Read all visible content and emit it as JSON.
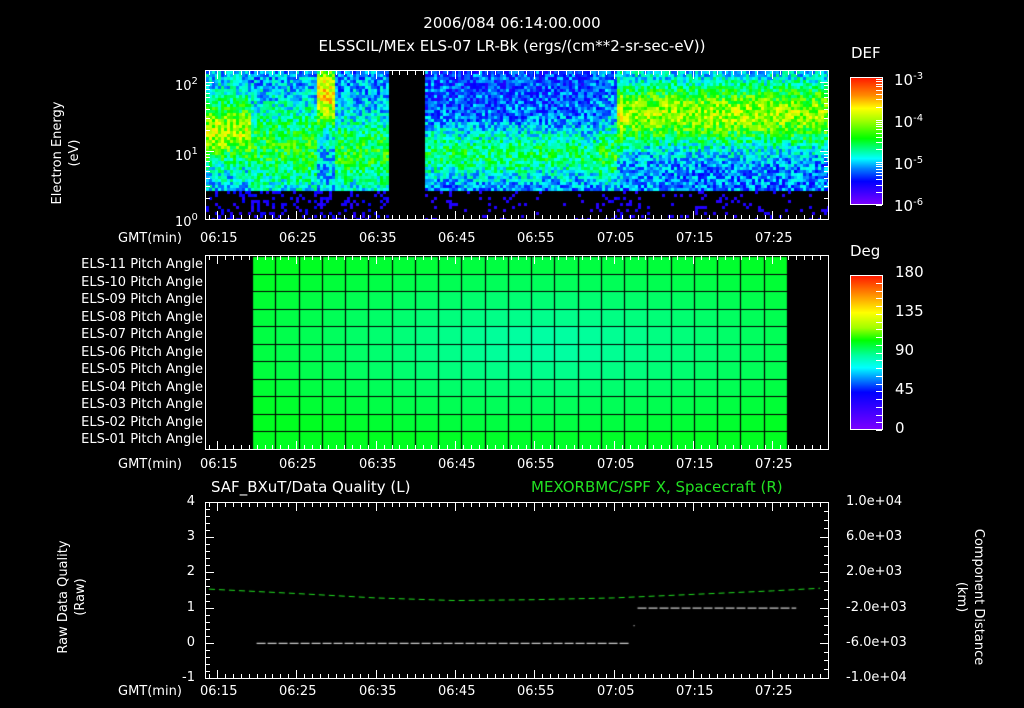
{
  "header": {
    "datetime": "2006/084 06:14:00.000",
    "subtitle": "ELSSCIL/MEx ELS-07 LR-Bk  (ergs/(cm**2-sr-sec-eV))"
  },
  "time_axis": {
    "label": "GMT(min)",
    "ticks": [
      "06:15",
      "06:25",
      "06:35",
      "06:45",
      "06:55",
      "07:05",
      "07:15",
      "07:25"
    ]
  },
  "panel1": {
    "ylabel_line1": "Electron Energy",
    "ylabel_line2": "(eV)",
    "yticks": [
      {
        "base": "10",
        "exp": "2"
      },
      {
        "base": "10",
        "exp": "1"
      },
      {
        "base": "10",
        "exp": "0"
      }
    ],
    "colorbar": {
      "title": "DEF",
      "ticks": [
        {
          "base": "10",
          "exp": "-3"
        },
        {
          "base": "10",
          "exp": "-4"
        },
        {
          "base": "10",
          "exp": "-5"
        },
        {
          "base": "10",
          "exp": "-6"
        }
      ]
    }
  },
  "panel2": {
    "row_labels": [
      "ELS-11 Pitch Angle",
      "ELS-10 Pitch Angle",
      "ELS-09 Pitch Angle",
      "ELS-08 Pitch Angle",
      "ELS-07 Pitch Angle",
      "ELS-06 Pitch Angle",
      "ELS-05 Pitch Angle",
      "ELS-04 Pitch Angle",
      "ELS-03 Pitch Angle",
      "ELS-02 Pitch Angle",
      "ELS-01 Pitch Angle"
    ],
    "colorbar": {
      "title": "Deg",
      "ticks": [
        "180",
        "135",
        "90",
        "45",
        "0"
      ]
    }
  },
  "panel3": {
    "title_left": "SAF_BXuT/Data Quality (L)",
    "title_right": "MEXORBMC/SPF X, Spacecraft (R)",
    "ylabel_left_line1": "Raw Data Quality",
    "ylabel_left_line2": "(Raw)",
    "yticks_left": [
      "4",
      "3",
      "2",
      "1",
      "0",
      "-1"
    ],
    "ylabel_right_line1": "Component Distance",
    "ylabel_right_line2": "(km)",
    "yticks_right": [
      "1.0e+04",
      "6.0e+03",
      "2.0e+03",
      "-2.0e+03",
      "-6.0e+03",
      "-1.0e+04"
    ]
  },
  "colors": {
    "background": "#000000",
    "axes": "#ffffff",
    "right_series": "#22e022"
  },
  "chart_data": [
    {
      "type": "heatmap",
      "title": "ELSSCIL/MEx ELS-07 LR-Bk (ergs/(cm**2-sr-sec-eV))",
      "xlabel": "GMT(min)",
      "ylabel": "Electron Energy (eV)",
      "x_range": [
        "06:13:30",
        "07:32:00"
      ],
      "y_scale": "log",
      "ylim": [
        1,
        150
      ],
      "colorbar_label": "DEF",
      "colorbar_range": [
        1e-06,
        0.001
      ],
      "features": [
        {
          "time": "06:14-06:19",
          "energy_eV": "15-50",
          "level": "~1e-4"
        },
        {
          "time": "06:20-06:27",
          "energy_eV": "5-60",
          "level": "~5e-5"
        },
        {
          "time": "06:28-06:29",
          "energy_eV": "30-150",
          "level": "~3e-4 (burst)"
        },
        {
          "time": "06:29-06:37",
          "energy_eV": "5-30",
          "level": "~5e-5"
        },
        {
          "time": "06:37-06:41",
          "energy_eV": "all",
          "level": "background/gap"
        },
        {
          "time": "06:41-07:05",
          "energy_eV": "4-20",
          "level": "~3e-5"
        },
        {
          "time": "07:05-07:31",
          "energy_eV": "15-150",
          "level": "~1e-4 to 3e-4"
        }
      ]
    },
    {
      "type": "heatmap",
      "title": "ELS Pitch Angle",
      "xlabel": "GMT(min)",
      "rows": [
        "ELS-11",
        "ELS-10",
        "ELS-09",
        "ELS-08",
        "ELS-07",
        "ELS-06",
        "ELS-05",
        "ELS-04",
        "ELS-03",
        "ELS-02",
        "ELS-01"
      ],
      "x_range": [
        "06:19:30",
        "07:28:30"
      ],
      "colorbar_label": "Deg",
      "colorbar_range": [
        0,
        180
      ],
      "values_deg_description": "Values between ~60 and ~95 deg; minimum (~60) near ELS-06/07 around 06:55-07:00, maximum (~95) near ELS-01..03 around 06:25-06:40 and ELS-11 near 07:25"
    },
    {
      "type": "line",
      "title": "SAF_BXuT/Data Quality (L) ; MEXORBMC/SPF X, Spacecraft (R)",
      "xlabel": "GMT(min)",
      "series": [
        {
          "name": "SAF_BXuT/Data Quality (L)",
          "axis": "left",
          "ylim": [
            -1,
            4
          ],
          "points": [
            [
              "06:20",
              0
            ],
            [
              "07:07",
              0
            ],
            [
              "07:08",
              1
            ],
            [
              "07:28",
              1
            ]
          ]
        },
        {
          "name": "MEXORBMC/SPF X, Spacecraft (R)",
          "axis": "right",
          "ylim": [
            -10000,
            10000
          ],
          "units": "km",
          "points": [
            [
              "06:14",
              100
            ],
            [
              "06:25",
              -400
            ],
            [
              "06:35",
              -900
            ],
            [
              "06:45",
              -1200
            ],
            [
              "06:55",
              -1100
            ],
            [
              "07:05",
              -900
            ],
            [
              "07:15",
              -500
            ],
            [
              "07:25",
              -100
            ],
            [
              "07:31",
              200
            ]
          ]
        }
      ]
    }
  ]
}
